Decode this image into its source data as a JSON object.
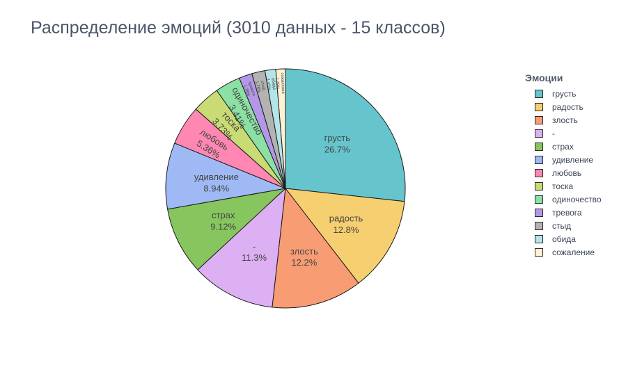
{
  "title": "Распределение эмоций (3010 данных - 15 классов)",
  "legend": {
    "title": "Эмоции",
    "items": [
      "грусть",
      "радость",
      "злость",
      "-",
      "страх",
      "удивление",
      "любовь",
      "тоска",
      "одиночество",
      "тревога",
      "стыд",
      "обида",
      "сожаление"
    ]
  },
  "chart_data": {
    "type": "pie",
    "title": "Распределение эмоций (3010 данных - 15 классов)",
    "legend_title": "Эмоции",
    "legend_position": "right",
    "slices": [
      {
        "label": "грусть",
        "value": 26.7,
        "text": "26.7%",
        "color": "#66c5cc"
      },
      {
        "label": "радость",
        "value": 12.8,
        "text": "12.8%",
        "color": "#f6cf71"
      },
      {
        "label": "злость",
        "value": 12.2,
        "text": "12.2%",
        "color": "#f89c74"
      },
      {
        "label": "-",
        "value": 11.3,
        "text": "11.3%",
        "color": "#dcb0f2"
      },
      {
        "label": "страх",
        "value": 9.12,
        "text": "9.12%",
        "color": "#87c55f"
      },
      {
        "label": "удивление",
        "value": 8.94,
        "text": "8.94%",
        "color": "#9eb9f3"
      },
      {
        "label": "любовь",
        "value": 5.36,
        "text": "5.36%",
        "color": "#fe88b1"
      },
      {
        "label": "тоска",
        "value": 3.73,
        "text": "3.73%",
        "color": "#c9db74"
      },
      {
        "label": "одиночество",
        "value": 3.41,
        "text": "3.41%",
        "color": "#8be0a4"
      },
      {
        "label": "тревога",
        "value": 1.78,
        "text": "1.78%",
        "color": "#b497e7"
      },
      {
        "label": "стыд",
        "value": 1.78,
        "text": "1.78%",
        "color": "#b3b3b3"
      },
      {
        "label": "обида",
        "value": 1.45,
        "text": "1.45%",
        "color": "#b3e5e8"
      },
      {
        "label": "сожаление",
        "value": 1.29,
        "text": "1.29%",
        "color": "#fdf1d6"
      }
    ]
  }
}
